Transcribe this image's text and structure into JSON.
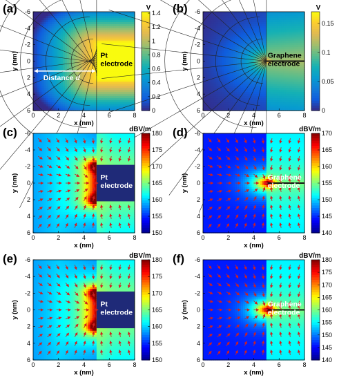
{
  "panels": [
    {
      "id": "a",
      "label": "(a)",
      "type": "potential",
      "electrode": "pt",
      "electrode_text": [
        "Pt",
        "electrode"
      ],
      "annotation": {
        "prefix": "Distance ",
        "var": "d"
      },
      "colorbar": {
        "unit": "V",
        "ticks": [
          0,
          0.2,
          0.4,
          0.6,
          0.8,
          1,
          1.2,
          1.4
        ]
      },
      "x_ticks": [
        0,
        2,
        4,
        6,
        8
      ],
      "y_ticks": [
        -6,
        -4,
        -2,
        0,
        2,
        4,
        6
      ],
      "xlabel": "x (nm)",
      "ylabel": "y (nm)"
    },
    {
      "id": "b",
      "label": "(b)",
      "type": "potential",
      "electrode": "graphene",
      "electrode_text": [
        "Graphene",
        "electrode"
      ],
      "colorbar": {
        "unit": "V",
        "ticks": [
          0,
          0.05,
          0.1,
          0.15
        ]
      },
      "x_ticks": [
        0,
        2,
        4,
        6,
        8
      ],
      "y_ticks": [
        -6,
        -4,
        -2,
        0,
        2,
        4,
        6
      ],
      "xlabel": "x (nm)",
      "ylabel": "y (nm)"
    },
    {
      "id": "c",
      "label": "(c)",
      "type": "field",
      "electrode": "pt",
      "electrode_text": [
        "Pt",
        "electrode"
      ],
      "colorbar": {
        "unit": "dBV/m",
        "ticks": [
          150,
          155,
          160,
          165,
          170,
          175,
          180
        ]
      },
      "x_ticks": [
        0,
        2,
        4,
        6,
        8
      ],
      "y_ticks": [
        -6,
        -4,
        -2,
        0,
        2,
        4,
        6
      ],
      "xlabel": "x (nm)",
      "ylabel": "y (nm)"
    },
    {
      "id": "d",
      "label": "(d)",
      "type": "field",
      "electrode": "graphene",
      "electrode_text": [
        "Graphene",
        "electrode"
      ],
      "colorbar": {
        "unit": "dBV/m",
        "ticks": [
          140,
          145,
          150,
          155,
          160,
          165,
          170
        ]
      },
      "x_ticks": [
        0,
        2,
        4,
        6,
        8
      ],
      "y_ticks": [
        -6,
        -4,
        -2,
        0,
        2,
        4,
        6
      ],
      "xlabel": "x (nm)",
      "ylabel": "y (nm)"
    },
    {
      "id": "e",
      "label": "(e)",
      "type": "field",
      "electrode": "pt",
      "electrode_text": [
        "Pt",
        "electrode"
      ],
      "colorbar": {
        "unit": "dBV/m",
        "ticks": [
          150,
          155,
          160,
          165,
          170,
          175,
          180
        ]
      },
      "x_ticks": [
        0,
        2,
        4,
        6,
        8
      ],
      "y_ticks": [
        -6,
        -4,
        -2,
        0,
        2,
        4,
        6
      ],
      "xlabel": "x (nm)",
      "ylabel": "y (nm)"
    },
    {
      "id": "f",
      "label": "(f)",
      "type": "field",
      "electrode": "graphene",
      "electrode_text": [
        "Graphene",
        "electrode"
      ],
      "colorbar": {
        "unit": "dBV/m",
        "ticks": [
          140,
          145,
          150,
          155,
          160,
          165,
          170,
          175,
          180
        ]
      },
      "x_ticks": [
        0,
        2,
        4,
        6,
        8
      ],
      "y_ticks": [
        -6,
        -4,
        -2,
        0,
        2,
        4,
        6
      ],
      "xlabel": "x (nm)",
      "ylabel": "y (nm)"
    }
  ],
  "colors": {
    "parula_low": "#352a87",
    "parula_mid": "#14b7c2",
    "parula_high": "#f9fb0e",
    "jet_low": "#00008f",
    "jet_high": "#800000",
    "electrode_pt": "#1f2a78",
    "arrow": "#d02020"
  }
}
